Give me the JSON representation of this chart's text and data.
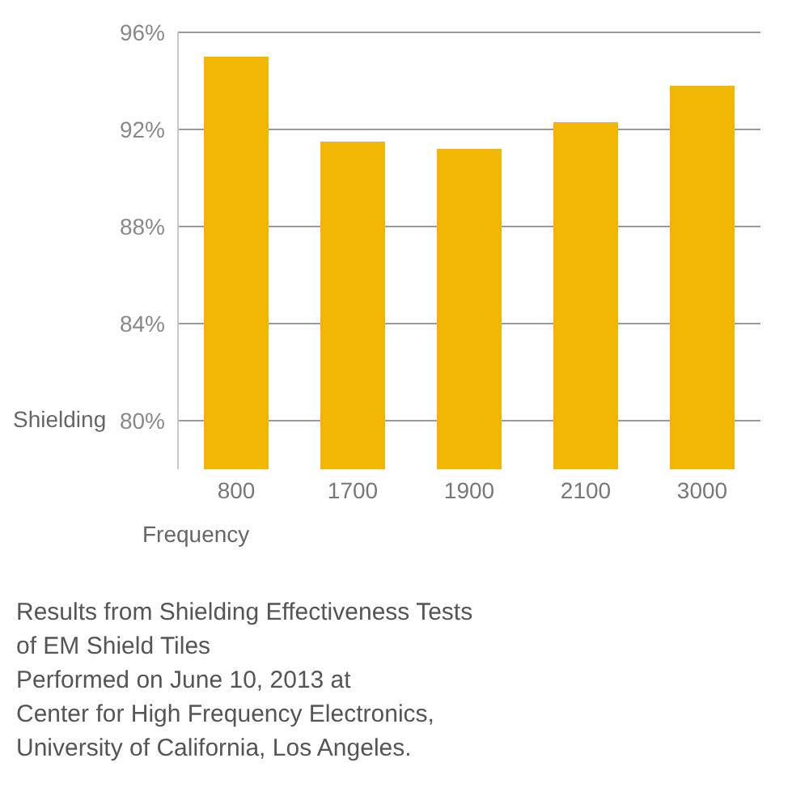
{
  "chart_data": {
    "type": "bar",
    "ylabel": "Shielding",
    "xlabel": "Frequency",
    "categories": [
      "800",
      "1700",
      "1900",
      "2100",
      "3000"
    ],
    "values": [
      95,
      91.5,
      91.2,
      92.3,
      93.8
    ],
    "color": "#f2b705",
    "ylim": [
      78,
      96
    ],
    "yticks": [
      {
        "value": 80,
        "label": "80%"
      },
      {
        "value": 84,
        "label": "84%"
      },
      {
        "value": 88,
        "label": "88%"
      },
      {
        "value": 92,
        "label": "92%"
      },
      {
        "value": 96,
        "label": "96%"
      }
    ],
    "grid": "y",
    "annotations": [
      "Results from Shielding Effectiveness Tests",
      "of EM Shield Tiles",
      "Performed on June 10, 2013 at",
      "Center for High Frequency Electronics,",
      "University of California, Los Angeles."
    ]
  }
}
